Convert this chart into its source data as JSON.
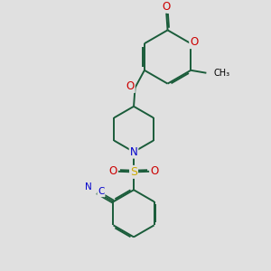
{
  "bg_color": "#e0e0e0",
  "bond_color": "#1a5c3a",
  "atom_colors": {
    "O": "#cc0000",
    "N": "#0000cc",
    "S": "#ccaa00",
    "C_dark": "#000000"
  },
  "lw": 1.4,
  "dbg": 0.055,
  "figsize": [
    3.0,
    3.0
  ],
  "dpi": 100,
  "xlim": [
    0,
    10
  ],
  "ylim": [
    0,
    10
  ]
}
